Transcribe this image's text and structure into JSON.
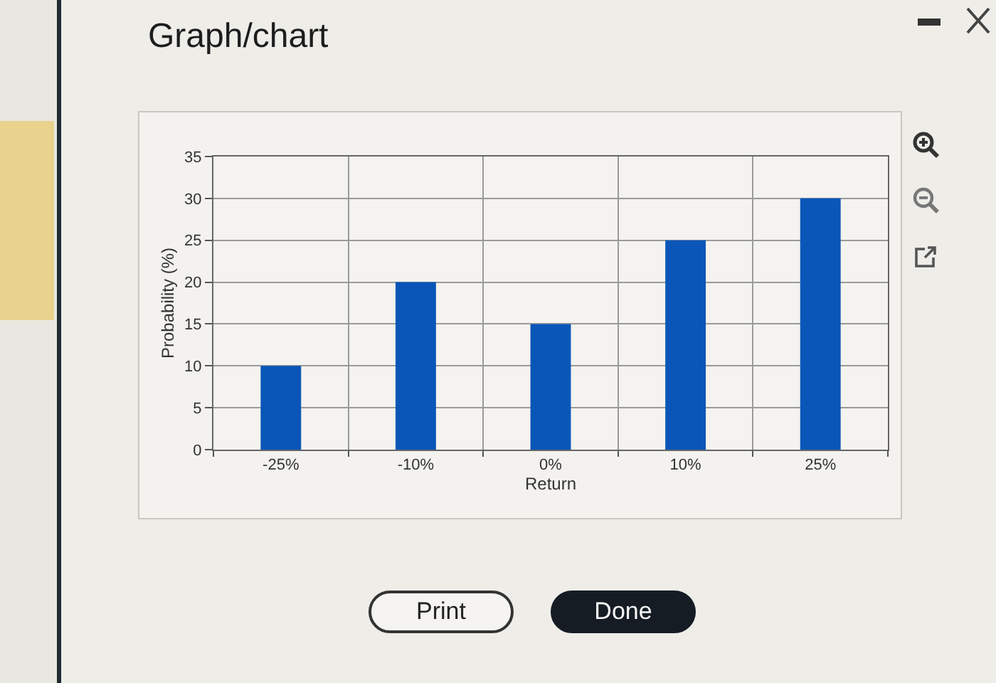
{
  "chart_data": {
    "type": "bar",
    "title": "Graph/chart",
    "xlabel": "Return",
    "ylabel": "Probability (%)",
    "categories": [
      "-25%",
      "-10%",
      "0%",
      "10%",
      "25%"
    ],
    "values": [
      10,
      20,
      15,
      25,
      30
    ],
    "color": "#0a56b8",
    "ylim": [
      0,
      35
    ],
    "yticks": [
      0,
      5,
      10,
      15,
      20,
      25,
      30,
      35
    ],
    "grid": true,
    "annotations": [
      "Print",
      "Done"
    ]
  }
}
